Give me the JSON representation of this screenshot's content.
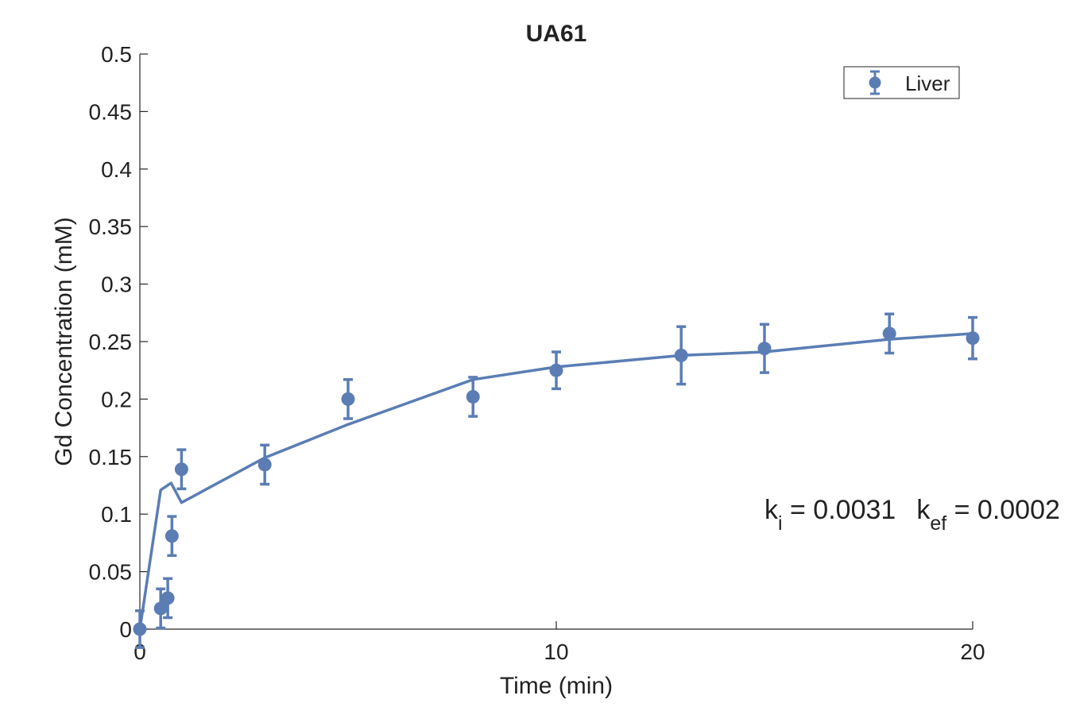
{
  "chart_data": {
    "type": "scatter",
    "title": "UA61",
    "xlabel": "Time (min)",
    "ylabel": "Gd Concentration (mM)",
    "xlim": [
      0,
      20
    ],
    "ylim": [
      0,
      0.5
    ],
    "x_ticks": [
      0,
      10,
      20
    ],
    "x_tick_labels": [
      "0",
      "10",
      "20"
    ],
    "y_ticks": [
      0,
      0.05,
      0.1,
      0.15,
      0.2,
      0.25,
      0.3,
      0.35,
      0.4,
      0.45,
      0.5
    ],
    "y_tick_labels": [
      "0",
      "0.05",
      "0.1",
      "0.15",
      "0.2",
      "0.25",
      "0.3",
      "0.35",
      "0.4",
      "0.45",
      "0.5"
    ],
    "grid": false,
    "legend": {
      "placement": "top-right",
      "entries": [
        "Liver"
      ]
    },
    "series": [
      {
        "name": "Liver",
        "kind": "errorbar",
        "color": "#5b7db4",
        "points": [
          {
            "x": 0,
            "y": 0.0,
            "err": 0.016
          },
          {
            "x": 0.5,
            "y": 0.018,
            "err": 0.017
          },
          {
            "x": 0.67,
            "y": 0.027,
            "err": 0.017
          },
          {
            "x": 0.77,
            "y": 0.081,
            "err": 0.017
          },
          {
            "x": 1.0,
            "y": 0.139,
            "err": 0.017
          },
          {
            "x": 3.0,
            "y": 0.143,
            "err": 0.017
          },
          {
            "x": 5.0,
            "y": 0.2,
            "err": 0.017
          },
          {
            "x": 8.0,
            "y": 0.202,
            "err": 0.017
          },
          {
            "x": 10.0,
            "y": 0.225,
            "err": 0.016
          },
          {
            "x": 13.0,
            "y": 0.238,
            "err": 0.025
          },
          {
            "x": 15.0,
            "y": 0.244,
            "err": 0.021
          },
          {
            "x": 18.0,
            "y": 0.257,
            "err": 0.017
          },
          {
            "x": 20.0,
            "y": 0.253,
            "err": 0.018
          }
        ]
      },
      {
        "kind": "line",
        "color": "#5b7db4",
        "x": [
          0,
          0.5,
          0.75,
          1.0,
          3.0,
          5.0,
          8.0,
          10.0,
          13.0,
          15.0,
          18.0,
          20.0
        ],
        "y": [
          0.0,
          0.121,
          0.127,
          0.11,
          0.149,
          0.178,
          0.217,
          0.228,
          0.238,
          0.241,
          0.252,
          0.257
        ]
      }
    ],
    "annotation": {
      "k_symbol": "k",
      "ki_sub": "i",
      "ki_value": " = 0.0031",
      "kef_sub": "ef",
      "kef_value": " = 0.0002"
    }
  }
}
